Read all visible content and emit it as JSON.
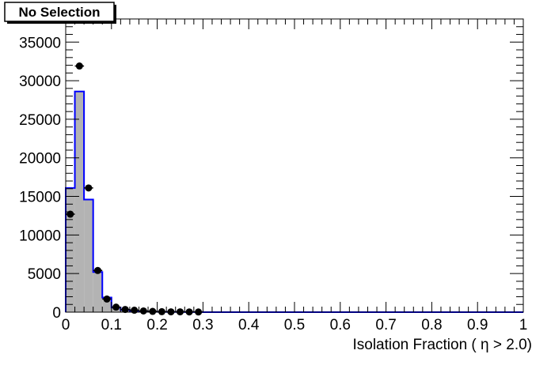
{
  "chart_data": {
    "type": "bar",
    "title": "No Selection",
    "xlabel": "Isolation Fraction ( η > 2.0)",
    "ylabel": "",
    "xlim": [
      0,
      1
    ],
    "ylim": [
      0,
      38000
    ],
    "x_ticks": [
      "0",
      "0.1",
      "0.2",
      "0.3",
      "0.4",
      "0.5",
      "0.6",
      "0.7",
      "0.8",
      "0.9",
      "1"
    ],
    "y_ticks": [
      "0",
      "5000",
      "10000",
      "15000",
      "20000",
      "25000",
      "30000",
      "35000"
    ],
    "grid": false,
    "legend": "none",
    "series": [
      {
        "style": "filled histogram",
        "fill_color": "#b3b3b3",
        "line_color": "#0000ff",
        "bin_width": 0.02,
        "x": [
          0.01,
          0.03,
          0.05,
          0.07,
          0.09,
          0.11,
          0.13,
          0.15,
          0.17,
          0.19,
          0.21,
          0.23,
          0.25,
          0.27,
          0.29
        ],
        "values": [
          16100,
          28600,
          14600,
          5200,
          1900,
          600,
          280,
          150,
          90,
          60,
          40,
          30,
          20,
          15,
          10
        ]
      },
      {
        "style": "markers with error bars",
        "color": "#000000",
        "x": [
          0.01,
          0.03,
          0.05,
          0.07,
          0.09,
          0.11,
          0.13,
          0.15,
          0.17,
          0.19,
          0.21,
          0.23,
          0.25,
          0.27,
          0.29
        ],
        "values": [
          12700,
          31900,
          16100,
          5400,
          1700,
          650,
          350,
          250,
          160,
          100,
          60,
          40,
          40,
          30,
          20
        ]
      }
    ]
  }
}
